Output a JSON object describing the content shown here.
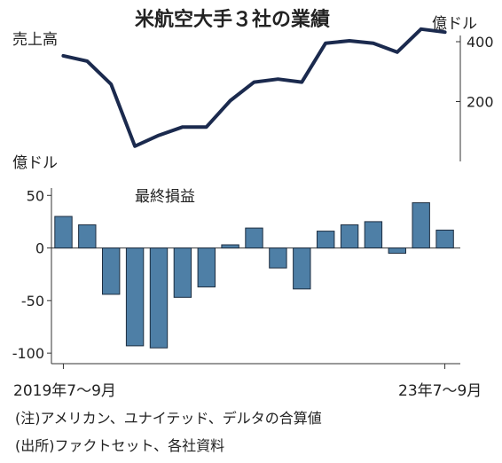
{
  "title": "米航空大手３社の業績",
  "notes": {
    "note": "(注)アメリカン、ユナイテッド、デルタの合算値",
    "source": "(出所)ファクトセット、各社資料"
  },
  "chart_data": [
    {
      "type": "line",
      "label": "売上高",
      "unit": "億ドル",
      "axis_side": "right",
      "yticks": [
        200,
        400
      ],
      "ylim": [
        0,
        480
      ],
      "values": [
        353,
        335,
        258,
        51,
        87,
        115,
        115,
        203,
        265,
        275,
        265,
        395,
        403,
        395,
        365,
        442,
        432
      ],
      "color": "#1b2a4e",
      "grid": false
    },
    {
      "type": "bar",
      "label": "最終損益",
      "unit": "億ドル",
      "axis_side": "left",
      "yticks": [
        50,
        0,
        -50,
        -100
      ],
      "ylim": [
        -110,
        57
      ],
      "values": [
        30,
        22,
        -44,
        -93,
        -95,
        -47,
        -37,
        3,
        19,
        -19,
        -39,
        16,
        22,
        25,
        -5,
        43,
        17
      ],
      "color": "#4e7fa6",
      "grid": false,
      "x_start_label": "2019年7〜9月",
      "x_end_label": "23年7〜9月"
    }
  ]
}
